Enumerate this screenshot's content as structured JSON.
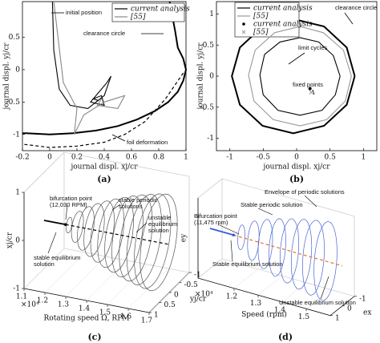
{
  "chart_data": [
    {
      "type": "line",
      "panel_label": "(a)",
      "xlabel": "journal displ. xj/cr",
      "ylabel": "journal displ. yj/cr",
      "xlim": [
        -0.2,
        1
      ],
      "ylim": [
        -1.25,
        1.05
      ],
      "xticks": [
        -0.2,
        0,
        0.2,
        0.4,
        0.6,
        0.8,
        1
      ],
      "yticks": [
        -1,
        -0.5,
        0,
        0.5
      ],
      "series": [
        {
          "name": "current analysis",
          "color": "#000000",
          "x": [
            0.02,
            0.03,
            0.07,
            0.15,
            0.28,
            0.4,
            0.45,
            0.42,
            0.3,
            0.4,
            0.38,
            0.32,
            0.36
          ],
          "y": [
            1.05,
            0.3,
            -0.3,
            -0.55,
            -0.6,
            -0.4,
            -0.1,
            -0.2,
            -0.5,
            -0.55,
            -0.4,
            -0.45,
            -0.48
          ]
        },
        {
          "name": "[55]",
          "color": "#888888",
          "x": [
            0.03,
            0.1,
            0.2,
            0.18,
            0.25,
            0.4,
            0.55,
            0.5,
            0.35,
            0.38
          ],
          "y": [
            1.05,
            -0.2,
            -0.6,
            -1.0,
            -0.7,
            -0.5,
            -0.4,
            -0.6,
            -0.55,
            -0.45
          ]
        }
      ],
      "curves": [
        {
          "color": "#000000",
          "width": 2,
          "x": [
            0.88,
            0.92,
            0.94,
            0.98,
            1,
            0.98,
            0.94,
            0.87,
            0.77,
            0.64,
            0.5,
            0.34,
            0.17,
            0,
            -0.17,
            -0.2
          ],
          "y": [
            1.05,
            0.6,
            0.34,
            0.17,
            0,
            -0.17,
            -0.34,
            -0.5,
            -0.64,
            -0.77,
            -0.87,
            -0.94,
            -0.98,
            -1,
            -0.98,
            -0.98
          ]
        },
        {
          "color": "#000000",
          "width": 1.2,
          "dashed": true,
          "x": [
            0.98,
            0.85,
            0.7,
            0.55,
            0.4,
            0.2,
            0,
            -0.2
          ],
          "y": [
            -0.05,
            -0.45,
            -0.8,
            -1.0,
            -1.12,
            -1.18,
            -1.2,
            -1.15
          ]
        }
      ],
      "annotations": [
        "initial position",
        "clearance circle",
        "foil deformation"
      ]
    },
    {
      "type": "line",
      "panel_label": "(b)",
      "xlabel": "journal displ. xj/cr",
      "ylabel": "journal displ. yj/cr",
      "xlim": [
        -1.2,
        1.2
      ],
      "ylim": [
        -1.2,
        1.2
      ],
      "xticks": [
        -1,
        -0.5,
        0,
        0.5,
        1
      ],
      "yticks": [
        -1,
        -0.5,
        0,
        0.5,
        1
      ],
      "series": [
        {
          "name": "current analysis",
          "color": "#000000",
          "x": [
            0.65,
            0.55,
            0.33,
            0.05,
            -0.25,
            -0.48,
            -0.55,
            -0.5,
            -0.28,
            0.05,
            0.38,
            0.58,
            0.65
          ],
          "y": [
            0,
            0.33,
            0.55,
            0.62,
            0.55,
            0.35,
            0.02,
            -0.3,
            -0.55,
            -0.63,
            -0.55,
            -0.3,
            0
          ]
        },
        {
          "name": "[55]",
          "color": "#999999",
          "x": [
            0.82,
            0.7,
            0.4,
            0.05,
            -0.33,
            -0.62,
            -0.72,
            -0.64,
            -0.35,
            0.05,
            0.45,
            0.73,
            0.82
          ],
          "y": [
            0,
            0.42,
            0.7,
            0.8,
            0.7,
            0.42,
            0.02,
            -0.4,
            -0.7,
            -0.8,
            -0.7,
            -0.4,
            0
          ]
        },
        {
          "name": "current analysis",
          "color": "#000000",
          "marker": "dot",
          "x": [
            0.2
          ],
          "y": [
            -0.2
          ]
        },
        {
          "name": "[55]",
          "color": "#999999",
          "marker": "x",
          "x": [
            0.22
          ],
          "y": [
            -0.26
          ]
        }
      ],
      "curves": [
        {
          "color": "#000000",
          "width": 2,
          "x": [
            0.87,
            0.75,
            0.41,
            -0.05,
            -0.51,
            -0.85,
            -0.97,
            -0.85,
            -0.51,
            -0.05,
            0.41,
            0.75,
            0.87
          ],
          "y": [
            0,
            0.46,
            0.8,
            0.92,
            0.8,
            0.46,
            0,
            -0.46,
            -0.8,
            -0.92,
            -0.8,
            -0.46,
            0
          ]
        }
      ],
      "annotations": [
        "clearance circle",
        "limit cycles",
        "fixed points"
      ]
    },
    {
      "type": "cone3d",
      "panel_label": "(c)",
      "xlabel": "Rotating speed Ω, RPM",
      "ylabel": "yj/cr",
      "zlabel": "xj/cr",
      "multiplier": "×10⁴",
      "xlim": [
        1.1,
        1.7
      ],
      "ylim": [
        -1,
        1
      ],
      "zlim": [
        -1,
        1
      ],
      "xticks": [
        1.1,
        1.2,
        1.3,
        1.4,
        1.5,
        1.6,
        1.7
      ],
      "yticks": [
        -1,
        -0.5,
        0,
        0.5,
        1
      ],
      "zticks": [
        -1,
        0,
        1
      ],
      "bifurcation_speed": 1.203,
      "stable_color": "#000000",
      "unstable_color": "#000000",
      "cycle_color": "#555555",
      "speeds": [
        1.22,
        1.26,
        1.3,
        1.34,
        1.38,
        1.42,
        1.46,
        1.5,
        1.54,
        1.58,
        1.62,
        1.65
      ],
      "amplitudes": [
        0.15,
        0.3,
        0.42,
        0.51,
        0.59,
        0.66,
        0.72,
        0.78,
        0.83,
        0.87,
        0.91,
        0.93
      ],
      "annotations": [
        [
          "bifurcation point",
          "(12,030 RPM)"
        ],
        [
          "stable periodic",
          "solutions"
        ],
        [
          "unstable",
          "equilibrium",
          "solution"
        ],
        [
          "stable equilibrium",
          "solution"
        ]
      ]
    },
    {
      "type": "cone3d",
      "panel_label": "(d)",
      "xlabel": "Speed (rpm)",
      "ylabel": "ex",
      "zlabel": "ey",
      "multiplier": "×10⁴",
      "xlim": [
        1.05,
        1.6
      ],
      "ylim": [
        -1,
        1
      ],
      "zlim": [
        -1,
        1
      ],
      "xticks": [
        1.2,
        1.3,
        1.4,
        1.5
      ],
      "yticks": [
        -1,
        0,
        1
      ],
      "bifurcation_speed": 1.1475,
      "stable_color": "#3a5bd9",
      "unstable_color": "#e0782a",
      "cycle_color": "#4a64d6",
      "speeds": [
        1.18,
        1.23,
        1.28,
        1.33,
        1.38,
        1.43,
        1.48,
        1.53
      ],
      "amplitudes": [
        0.3,
        0.48,
        0.6,
        0.7,
        0.78,
        0.85,
        0.91,
        0.96
      ],
      "annotations": [
        [
          "Envelope of periodic solutions"
        ],
        [
          "Stable periodic solution"
        ],
        [
          "Bifurcation point",
          "(11,475 rpm)"
        ],
        [
          "Stable equilibrium solution"
        ],
        [
          "Unstable equilibrium solution"
        ]
      ]
    }
  ]
}
